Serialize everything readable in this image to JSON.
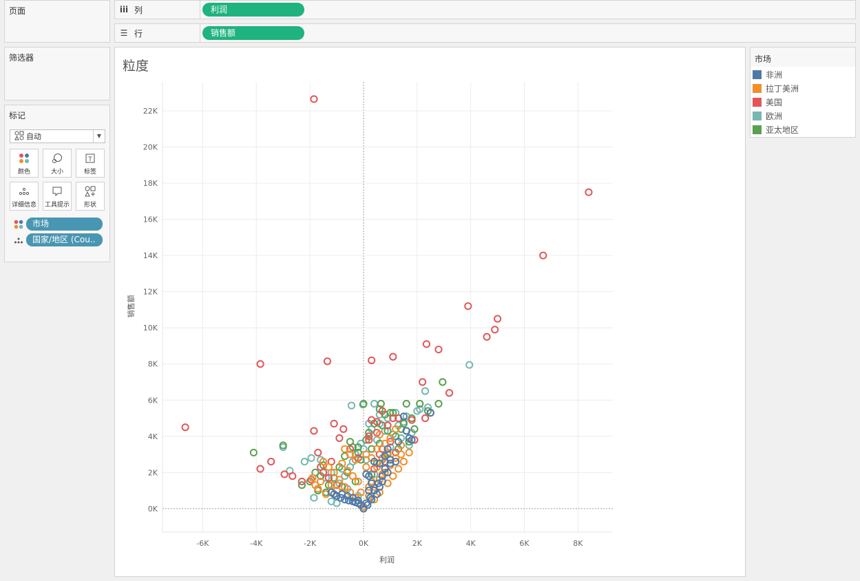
{
  "panels": {
    "pages_title": "页面",
    "filters_title": "筛选器",
    "marks_title": "标记"
  },
  "marks": {
    "type_label": "自动",
    "buttons": [
      {
        "label": "颜色",
        "icon": "color-icon"
      },
      {
        "label": "大小",
        "icon": "size-icon"
      },
      {
        "label": "标签",
        "icon": "label-icon"
      },
      {
        "label": "详细信息",
        "icon": "detail-icon"
      },
      {
        "label": "工具提示",
        "icon": "tooltip-icon"
      },
      {
        "label": "形状",
        "icon": "shape-icon"
      }
    ],
    "fields": [
      {
        "label": "市场",
        "icon": "color-icon"
      },
      {
        "label": "国家/地区 (Cou..",
        "icon": "detail-icon"
      }
    ]
  },
  "shelves": {
    "columns_label": "列",
    "columns_pill": "利润",
    "rows_label": "行",
    "rows_pill": "销售额"
  },
  "legend": {
    "title": "市场",
    "items": [
      {
        "label": "非洲",
        "color": "#4e79a7"
      },
      {
        "label": "拉丁美洲",
        "color": "#f28e2b"
      },
      {
        "label": "美国",
        "color": "#e15759"
      },
      {
        "label": "欧洲",
        "color": "#76b7b2"
      },
      {
        "label": "亚太地区",
        "color": "#59a14f"
      }
    ]
  },
  "chart_data": {
    "type": "scatter",
    "title": "粒度",
    "xlabel": "利润",
    "ylabel": "销售额",
    "xlim": [
      -7500,
      9300
    ],
    "ylim": [
      -1300,
      23600
    ],
    "x_ticks": [
      -6000,
      -4000,
      -2000,
      0,
      2000,
      4000,
      6000,
      8000
    ],
    "x_tick_labels": [
      "-6K",
      "-4K",
      "-2K",
      "0K",
      "2K",
      "4K",
      "6K",
      "8K"
    ],
    "y_ticks": [
      0,
      2000,
      4000,
      6000,
      8000,
      10000,
      12000,
      14000,
      16000,
      18000,
      20000,
      22000
    ],
    "y_tick_labels": [
      "0K",
      "2K",
      "4K",
      "6K",
      "8K",
      "10K",
      "12K",
      "14K",
      "16K",
      "18K",
      "20K",
      "22K"
    ],
    "grid": true,
    "marker": "open-circle",
    "legend_position": "right",
    "series": [
      {
        "name": "非洲",
        "color": "#4e79a7",
        "points": [
          [
            0,
            0
          ],
          [
            100,
            300
          ],
          [
            250,
            600
          ],
          [
            400,
            1000
          ],
          [
            550,
            1400
          ],
          [
            700,
            1800
          ],
          [
            900,
            2000
          ],
          [
            1000,
            2500
          ],
          [
            700,
            1500
          ],
          [
            500,
            800
          ],
          [
            300,
            500
          ],
          [
            150,
            200
          ],
          [
            -100,
            200
          ],
          [
            -200,
            300
          ],
          [
            -300,
            350
          ],
          [
            -400,
            400
          ],
          [
            -550,
            450
          ],
          [
            -700,
            500
          ],
          [
            -850,
            600
          ],
          [
            -1000,
            700
          ],
          [
            -1100,
            800
          ],
          [
            -1200,
            900
          ],
          [
            100,
            1900
          ],
          [
            200,
            1800
          ],
          [
            400,
            2600
          ],
          [
            600,
            2500
          ],
          [
            800,
            2900
          ],
          [
            -800,
            800
          ],
          [
            -600,
            700
          ],
          [
            1800,
            3800
          ],
          [
            1700,
            3900
          ],
          [
            2500,
            5300
          ],
          [
            1300,
            3700
          ],
          [
            1200,
            2600
          ],
          [
            1000,
            2700
          ],
          [
            800,
            2200
          ],
          [
            300,
            1400
          ],
          [
            200,
            1000
          ],
          [
            600,
            1200
          ],
          [
            -400,
            600
          ],
          [
            -200,
            450
          ],
          [
            1500,
            5100
          ],
          [
            900,
            3300
          ],
          [
            1600,
            4300
          ]
        ]
      },
      {
        "name": "拉丁美洲",
        "color": "#f28e2b",
        "points": [
          [
            0,
            100
          ],
          [
            200,
            700
          ],
          [
            400,
            1200
          ],
          [
            600,
            1600
          ],
          [
            800,
            2000
          ],
          [
            1000,
            2400
          ],
          [
            1200,
            2800
          ],
          [
            1400,
            3000
          ],
          [
            300,
            1500
          ],
          [
            500,
            2300
          ],
          [
            700,
            2700
          ],
          [
            900,
            3100
          ],
          [
            -300,
            600
          ],
          [
            -500,
            900
          ],
          [
            -700,
            1200
          ],
          [
            -900,
            1600
          ],
          [
            -1100,
            2000
          ],
          [
            -1300,
            2300
          ],
          [
            -1500,
            2600
          ],
          [
            -700,
            3300
          ],
          [
            -500,
            3000
          ],
          [
            100,
            2300
          ],
          [
            300,
            2800
          ],
          [
            -200,
            1500
          ],
          [
            -400,
            1800
          ],
          [
            -600,
            2100
          ],
          [
            -800,
            2500
          ],
          [
            -1000,
            1000
          ],
          [
            -1200,
            1300
          ],
          [
            -1400,
            800
          ],
          [
            -1600,
            1500
          ],
          [
            -1800,
            1300
          ],
          [
            400,
            500
          ],
          [
            600,
            900
          ],
          [
            200,
            1200
          ],
          [
            1100,
            1800
          ],
          [
            1300,
            2200
          ],
          [
            1500,
            2600
          ],
          [
            1700,
            3100
          ],
          [
            900,
            1400
          ],
          [
            700,
            1900
          ],
          [
            -100,
            900
          ],
          [
            500,
            3300
          ],
          [
            800,
            3600
          ],
          [
            1000,
            3900
          ],
          [
            1200,
            4400
          ],
          [
            1400,
            3500
          ],
          [
            -1900,
            1700
          ],
          [
            -1700,
            1100
          ],
          [
            100,
            3000
          ],
          [
            -300,
            2700
          ],
          [
            600,
            4100
          ]
        ]
      },
      {
        "name": "美国",
        "color": "#e15759",
        "points": [
          [
            -1850,
            22650
          ],
          [
            8400,
            17500
          ],
          [
            6700,
            14000
          ],
          [
            3900,
            11200
          ],
          [
            5000,
            10500
          ],
          [
            4900,
            9900
          ],
          [
            4600,
            9500
          ],
          [
            2350,
            9100
          ],
          [
            2800,
            8800
          ],
          [
            1100,
            8400
          ],
          [
            300,
            8200
          ],
          [
            -1350,
            8150
          ],
          [
            -3850,
            8000
          ],
          [
            2200,
            7000
          ],
          [
            3200,
            6400
          ],
          [
            -6650,
            4500
          ],
          [
            -1850,
            4300
          ],
          [
            -1100,
            4700
          ],
          [
            -750,
            4400
          ],
          [
            -900,
            3900
          ],
          [
            -1700,
            3100
          ],
          [
            -3450,
            2600
          ],
          [
            -3850,
            2200
          ],
          [
            -2950,
            1900
          ],
          [
            -2650,
            1800
          ],
          [
            -2300,
            1500
          ],
          [
            -1950,
            1600
          ],
          [
            -1500,
            2000
          ],
          [
            -1200,
            2600
          ],
          [
            200,
            3800
          ],
          [
            500,
            4200
          ],
          [
            900,
            4600
          ],
          [
            1300,
            5000
          ],
          [
            1800,
            4900
          ],
          [
            2300,
            5000
          ],
          [
            2500,
            5300
          ],
          [
            1900,
            3800
          ],
          [
            1600,
            4300
          ],
          [
            1000,
            3700
          ],
          [
            700,
            3300
          ],
          [
            600,
            3000
          ],
          [
            200,
            4000
          ],
          [
            500,
            4800
          ],
          [
            1200,
            3100
          ],
          [
            800,
            2600
          ],
          [
            400,
            2200
          ],
          [
            -200,
            2800
          ],
          [
            -500,
            3300
          ],
          [
            -1000,
            1300
          ],
          [
            -1300,
            1700
          ],
          [
            -1600,
            2300
          ],
          [
            300,
            4900
          ],
          [
            700,
            5400
          ],
          [
            1100,
            5000
          ]
        ]
      },
      {
        "name": "欧洲",
        "color": "#76b7b2",
        "points": [
          [
            3950,
            7950
          ],
          [
            -450,
            5700
          ],
          [
            -20,
            5750
          ],
          [
            400,
            5800
          ],
          [
            2100,
            5500
          ],
          [
            2400,
            5600
          ],
          [
            2300,
            6500
          ],
          [
            -3000,
            3400
          ],
          [
            -2750,
            2100
          ],
          [
            -2200,
            2600
          ],
          [
            -1950,
            2800
          ],
          [
            -1600,
            2700
          ],
          [
            -1850,
            600
          ],
          [
            -1200,
            400
          ],
          [
            -1000,
            300
          ],
          [
            -700,
            1800
          ],
          [
            -500,
            2300
          ],
          [
            -300,
            3000
          ],
          [
            0,
            3300
          ],
          [
            300,
            4400
          ],
          [
            600,
            4700
          ],
          [
            900,
            5000
          ],
          [
            1200,
            5300
          ],
          [
            1600,
            5100
          ],
          [
            2000,
            5400
          ],
          [
            1800,
            4200
          ],
          [
            1400,
            3900
          ],
          [
            1000,
            3400
          ],
          [
            700,
            2800
          ],
          [
            400,
            1900
          ],
          [
            200,
            1200
          ],
          [
            -200,
            700
          ],
          [
            -600,
            1100
          ],
          [
            -900,
            1400
          ],
          [
            -1200,
            2000
          ],
          [
            -1400,
            1700
          ],
          [
            -1700,
            1100
          ],
          [
            100,
            2700
          ],
          [
            500,
            3800
          ],
          [
            800,
            4300
          ],
          [
            1100,
            4100
          ],
          [
            1500,
            4800
          ],
          [
            1700,
            3500
          ],
          [
            -800,
            2200
          ],
          [
            -400,
            2600
          ],
          [
            -100,
            3600
          ],
          [
            200,
            4700
          ],
          [
            600,
            5200
          ],
          [
            900,
            4600
          ],
          [
            1300,
            4600
          ]
        ]
      },
      {
        "name": "亚太地区",
        "color": "#59a14f",
        "points": [
          [
            -4100,
            3100
          ],
          [
            -3000,
            3500
          ],
          [
            -2300,
            1300
          ],
          [
            -2000,
            1500
          ],
          [
            -1600,
            1800
          ],
          [
            -1500,
            2400
          ],
          [
            -1700,
            1000
          ],
          [
            -1800,
            2000
          ],
          [
            2950,
            7000
          ],
          [
            2800,
            5800
          ],
          [
            2400,
            5400
          ],
          [
            1600,
            5800
          ],
          [
            1000,
            5300
          ],
          [
            600,
            5500
          ],
          [
            650,
            5800
          ],
          [
            0,
            5800
          ],
          [
            -400,
            3400
          ],
          [
            -200,
            3100
          ],
          [
            -100,
            2700
          ],
          [
            100,
            3800
          ],
          [
            400,
            4700
          ],
          [
            800,
            5200
          ],
          [
            1100,
            5300
          ],
          [
            1500,
            4700
          ],
          [
            1900,
            4400
          ],
          [
            2100,
            5800
          ],
          [
            1700,
            3700
          ],
          [
            1300,
            3300
          ],
          [
            900,
            3000
          ],
          [
            500,
            2500
          ],
          [
            300,
            1900
          ],
          [
            -300,
            1500
          ],
          [
            -600,
            2000
          ],
          [
            -900,
            2300
          ],
          [
            -1100,
            1700
          ],
          [
            -1300,
            1300
          ],
          [
            -1400,
            900
          ],
          [
            -700,
            2900
          ],
          [
            -500,
            3700
          ],
          [
            200,
            4200
          ],
          [
            700,
            4600
          ],
          [
            1200,
            4000
          ],
          [
            1800,
            5000
          ],
          [
            -800,
            1200
          ],
          [
            -1000,
            700
          ],
          [
            300,
            3300
          ],
          [
            600,
            3600
          ],
          [
            900,
            4300
          ],
          [
            1400,
            4400
          ],
          [
            -200,
            3400
          ]
        ]
      }
    ]
  }
}
